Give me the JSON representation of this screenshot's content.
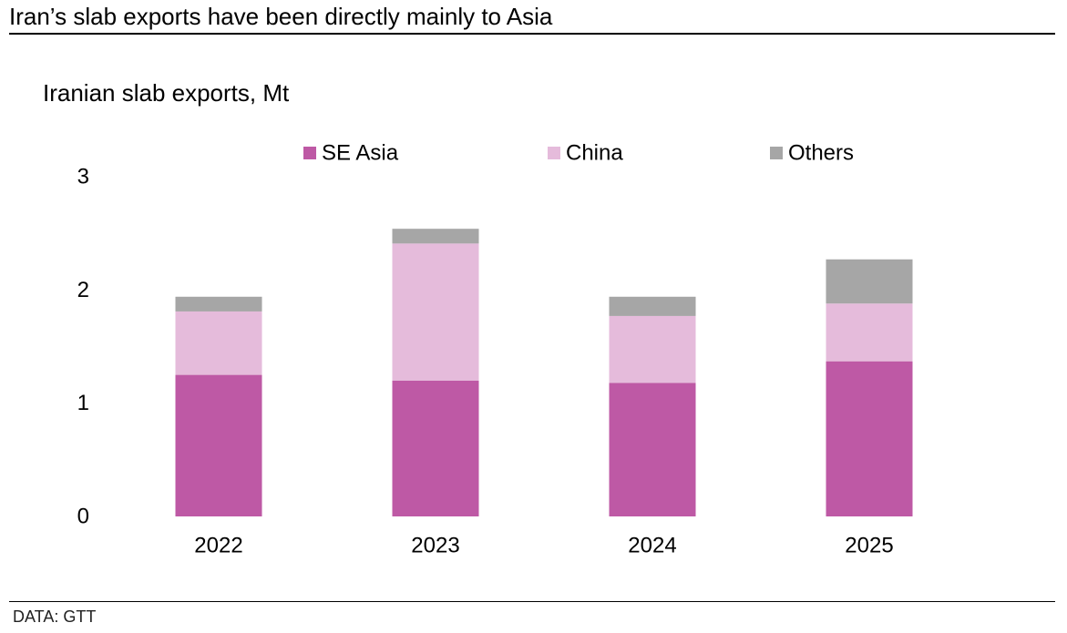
{
  "header": {
    "headline": "Iran’s slab exports have been directly mainly to Asia"
  },
  "footer": {
    "source": "DATA: GTT"
  },
  "colors": {
    "se_asia": "#be59a5",
    "china": "#e5bbdb",
    "others": "#a6a6a6"
  },
  "chart_data": {
    "type": "bar",
    "stacked": true,
    "title": "Iranian slab exports, Mt",
    "xlabel": "",
    "ylabel": "",
    "categories": [
      "2022",
      "2023",
      "2024",
      "2025"
    ],
    "series": [
      {
        "name": "SE Asia",
        "color": "#be59a5",
        "values": [
          1.25,
          1.2,
          1.18,
          1.37
        ]
      },
      {
        "name": "China",
        "color": "#e5bbdb",
        "values": [
          0.56,
          1.21,
          0.59,
          0.51
        ]
      },
      {
        "name": "Others",
        "color": "#a6a6a6",
        "values": [
          0.13,
          0.13,
          0.17,
          0.39
        ]
      }
    ],
    "ylim": [
      0,
      3
    ],
    "yticks": [
      0,
      1,
      2,
      3
    ],
    "grid": false,
    "legend_position": "top"
  }
}
